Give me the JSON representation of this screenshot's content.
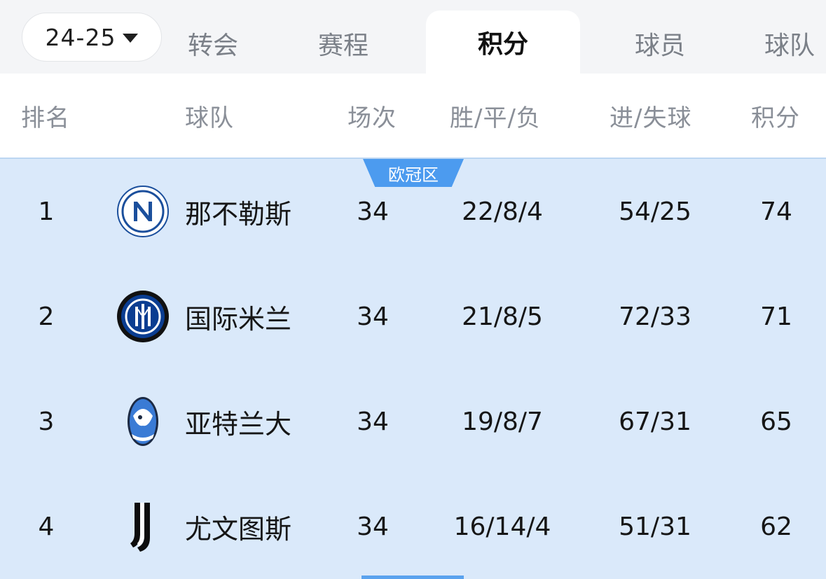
{
  "season": {
    "label": "24-25"
  },
  "tabs": [
    {
      "label": "转会",
      "active": false
    },
    {
      "label": "赛程",
      "active": false
    },
    {
      "label": "积分",
      "active": true
    },
    {
      "label": "球员",
      "active": false
    },
    {
      "label": "球队",
      "active": false
    }
  ],
  "columns": {
    "rank": "排名",
    "team": "球队",
    "played": "场次",
    "wdl": "胜/平/负",
    "goals": "进/失球",
    "points": "积分"
  },
  "zone_label": "欧冠区",
  "rows": [
    {
      "rank": "1",
      "team": "那不勒斯",
      "played": "34",
      "wdl": "22/8/4",
      "goals": "54/25",
      "points": "74",
      "logo_icon": "napoli-logo-icon"
    },
    {
      "rank": "2",
      "team": "国际米兰",
      "played": "34",
      "wdl": "21/8/5",
      "goals": "72/33",
      "points": "71",
      "logo_icon": "inter-logo-icon"
    },
    {
      "rank": "3",
      "team": "亚特兰大",
      "played": "34",
      "wdl": "19/8/7",
      "goals": "67/31",
      "points": "65",
      "logo_icon": "atalanta-logo-icon"
    },
    {
      "rank": "4",
      "team": "尤文图斯",
      "played": "34",
      "wdl": "16/14/4",
      "goals": "51/31",
      "points": "62",
      "logo_icon": "juventus-logo-icon"
    }
  ],
  "colors": {
    "zone_background": "#dae9fa",
    "zone_badge": "#4c9bef",
    "napoli_blue": "#1b4f9c",
    "inter_blue": "#0a3d91"
  }
}
